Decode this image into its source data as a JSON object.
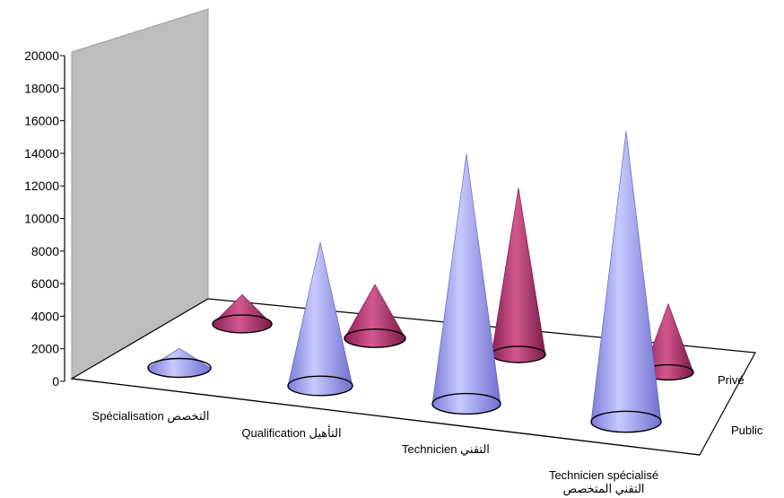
{
  "chart_data": {
    "type": "bar",
    "title": "",
    "xlabel": "",
    "ylabel": "",
    "ylim": [
      0,
      20000
    ],
    "y_ticks": [
      "0",
      "2000",
      "4000",
      "6000",
      "8000",
      "10000",
      "12000",
      "14000",
      "16000",
      "18000",
      "20000"
    ],
    "categories": [
      {
        "fr": "Spécialisation",
        "ar": "التخصص"
      },
      {
        "fr": "Qualification",
        "ar": "التأهيل"
      },
      {
        "fr": "Technicien",
        "ar": "التقني"
      },
      {
        "fr": "Technicien spécialisé",
        "ar": "التقني المتخصص"
      }
    ],
    "series": [
      {
        "name": "Public",
        "values": [
          1200,
          8800,
          15300,
          17800
        ],
        "color": "#9999ff"
      },
      {
        "name": "Privé",
        "values": [
          1800,
          3300,
          10200,
          4200
        ],
        "color": "#993366"
      }
    ],
    "grid": false,
    "legend": "depth-axis-right",
    "bar_shape": "cone-3d"
  }
}
